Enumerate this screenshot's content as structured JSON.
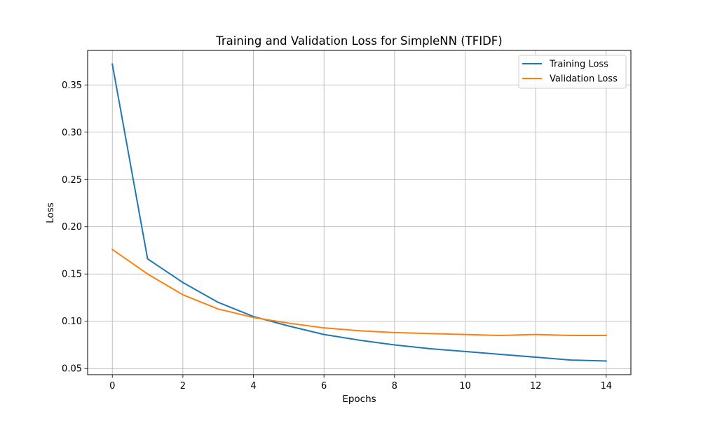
{
  "chart_data": {
    "type": "line",
    "title": "Training and Validation Loss for SimpleNN (TFIDF)",
    "xlabel": "Epochs",
    "ylabel": "Loss",
    "xlim": [
      -0.7,
      14.7
    ],
    "ylim": [
      0.0435,
      0.3865
    ],
    "x_ticks": [
      0,
      2,
      4,
      6,
      8,
      10,
      12,
      14
    ],
    "y_ticks": [
      0.05,
      0.1,
      0.15,
      0.2,
      0.25,
      0.3,
      0.35
    ],
    "y_tick_labels": [
      "0.05",
      "0.10",
      "0.15",
      "0.20",
      "0.25",
      "0.30",
      "0.35"
    ],
    "grid": true,
    "legend_position": "top-right",
    "x": [
      0,
      1,
      2,
      3,
      4,
      5,
      6,
      7,
      8,
      9,
      10,
      11,
      12,
      13,
      14
    ],
    "series": [
      {
        "name": "Training Loss",
        "color": "#1f77b4",
        "values": [
          0.372,
          0.166,
          0.141,
          0.12,
          0.105,
          0.095,
          0.086,
          0.08,
          0.075,
          0.071,
          0.068,
          0.065,
          0.062,
          0.059,
          0.058
        ]
      },
      {
        "name": "Validation Loss",
        "color": "#ff7f0e",
        "values": [
          0.176,
          0.15,
          0.128,
          0.113,
          0.104,
          0.098,
          0.093,
          0.09,
          0.088,
          0.087,
          0.086,
          0.085,
          0.086,
          0.085,
          0.085
        ]
      }
    ]
  }
}
